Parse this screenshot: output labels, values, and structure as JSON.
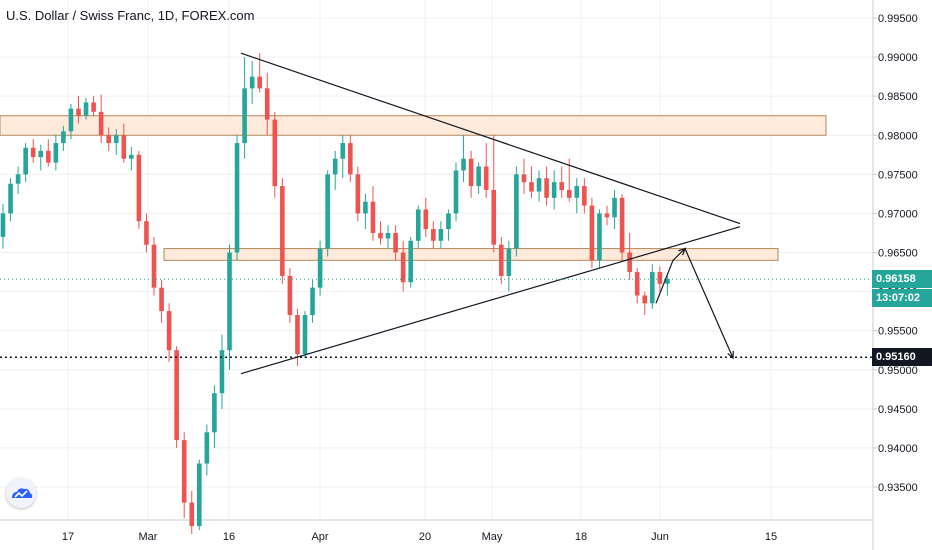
{
  "title": "U.S. Dollar / Swiss Franc, 1D, FOREX.com",
  "colors": {
    "up": "#26a69a",
    "down": "#ef5350",
    "zone_fill": "#fdeadb",
    "zone_stroke": "#b3885a",
    "grid": "#eef0f4",
    "axis_text": "#131722",
    "current": "#26a69a"
  },
  "logo_icon": "tradingview-cloud-icon",
  "price_axis": {
    "labels": [
      "0.99500",
      "0.99000",
      "0.98500",
      "0.98000",
      "0.97500",
      "0.97000",
      "0.96500",
      "0.96000",
      "0.95500",
      "0.95000",
      "0.94500",
      "0.94000",
      "0.93500"
    ],
    "current_price": "0.96158",
    "countdown": "13:07:02",
    "target_price": "0.95160"
  },
  "time_axis": {
    "labels": [
      "17",
      "Mar",
      "16",
      "Apr",
      "20",
      "May",
      "18",
      "Jun",
      "15"
    ]
  },
  "chart_data": {
    "type": "candlestick",
    "ylim": [
      0.9295,
      0.9975
    ],
    "xlabels": [
      "17",
      "Mar",
      "16",
      "Apr",
      "20",
      "May",
      "18",
      "Jun",
      "15"
    ],
    "candles": [
      [
        0.967,
        0.9712,
        0.9655,
        0.97
      ],
      [
        0.97,
        0.9745,
        0.969,
        0.9738
      ],
      [
        0.9738,
        0.976,
        0.9725,
        0.975
      ],
      [
        0.975,
        0.979,
        0.974,
        0.9784
      ],
      [
        0.9784,
        0.9795,
        0.9765,
        0.9772
      ],
      [
        0.9772,
        0.9788,
        0.9755,
        0.978
      ],
      [
        0.978,
        0.9795,
        0.976,
        0.9765
      ],
      [
        0.9765,
        0.98,
        0.9755,
        0.979
      ],
      [
        0.979,
        0.9812,
        0.978,
        0.9805
      ],
      [
        0.9805,
        0.984,
        0.9795,
        0.9834
      ],
      [
        0.9834,
        0.985,
        0.9815,
        0.9825
      ],
      [
        0.9825,
        0.9848,
        0.982,
        0.9842
      ],
      [
        0.9842,
        0.985,
        0.9825,
        0.983
      ],
      [
        0.983,
        0.9852,
        0.979,
        0.98
      ],
      [
        0.98,
        0.981,
        0.978,
        0.979
      ],
      [
        0.979,
        0.9808,
        0.9775,
        0.98
      ],
      [
        0.98,
        0.9815,
        0.9765,
        0.977
      ],
      [
        0.977,
        0.9785,
        0.9755,
        0.9775
      ],
      [
        0.9775,
        0.978,
        0.968,
        0.969
      ],
      [
        0.969,
        0.97,
        0.965,
        0.966
      ],
      [
        0.966,
        0.967,
        0.9595,
        0.9605
      ],
      [
        0.9605,
        0.9615,
        0.956,
        0.9575
      ],
      [
        0.9575,
        0.9585,
        0.951,
        0.9525
      ],
      [
        0.9525,
        0.953,
        0.94,
        0.941
      ],
      [
        0.941,
        0.942,
        0.931,
        0.933
      ],
      [
        0.933,
        0.9345,
        0.929,
        0.93
      ],
      [
        0.93,
        0.9385,
        0.9295,
        0.938
      ],
      [
        0.938,
        0.943,
        0.9365,
        0.942
      ],
      [
        0.942,
        0.948,
        0.94,
        0.947
      ],
      [
        0.947,
        0.9545,
        0.945,
        0.9525
      ],
      [
        0.9525,
        0.966,
        0.95,
        0.965
      ],
      [
        0.965,
        0.98,
        0.964,
        0.979
      ],
      [
        0.979,
        0.99,
        0.977,
        0.986
      ],
      [
        0.986,
        0.9895,
        0.984,
        0.9875
      ],
      [
        0.9875,
        0.9905,
        0.9855,
        0.986
      ],
      [
        0.986,
        0.988,
        0.98,
        0.982
      ],
      [
        0.982,
        0.983,
        0.972,
        0.9735
      ],
      [
        0.9735,
        0.9745,
        0.961,
        0.962
      ],
      [
        0.962,
        0.963,
        0.956,
        0.957
      ],
      [
        0.957,
        0.9578,
        0.9505,
        0.952
      ],
      [
        0.952,
        0.9575,
        0.9515,
        0.957
      ],
      [
        0.957,
        0.9615,
        0.956,
        0.9605
      ],
      [
        0.9605,
        0.9665,
        0.9595,
        0.9655
      ],
      [
        0.9655,
        0.9755,
        0.9645,
        0.975
      ],
      [
        0.975,
        0.978,
        0.973,
        0.977
      ],
      [
        0.977,
        0.98,
        0.9745,
        0.979
      ],
      [
        0.979,
        0.98,
        0.974,
        0.975
      ],
      [
        0.975,
        0.976,
        0.969,
        0.97
      ],
      [
        0.97,
        0.9725,
        0.968,
        0.9715
      ],
      [
        0.9715,
        0.9735,
        0.9665,
        0.9675
      ],
      [
        0.9675,
        0.969,
        0.966,
        0.9668
      ],
      [
        0.9668,
        0.9685,
        0.9655,
        0.9675
      ],
      [
        0.9675,
        0.9685,
        0.964,
        0.965
      ],
      [
        0.965,
        0.9665,
        0.96,
        0.9612
      ],
      [
        0.9612,
        0.967,
        0.9605,
        0.9665
      ],
      [
        0.9665,
        0.971,
        0.9655,
        0.9705
      ],
      [
        0.9705,
        0.972,
        0.967,
        0.968
      ],
      [
        0.968,
        0.969,
        0.9655,
        0.9665
      ],
      [
        0.9665,
        0.969,
        0.9655,
        0.968
      ],
      [
        0.968,
        0.9705,
        0.9665,
        0.97
      ],
      [
        0.97,
        0.9765,
        0.969,
        0.9755
      ],
      [
        0.9755,
        0.98,
        0.974,
        0.977
      ],
      [
        0.977,
        0.978,
        0.972,
        0.9735
      ],
      [
        0.9735,
        0.9765,
        0.9725,
        0.976
      ],
      [
        0.976,
        0.979,
        0.972,
        0.973
      ],
      [
        0.973,
        0.98,
        0.965,
        0.966
      ],
      [
        0.966,
        0.967,
        0.961,
        0.962
      ],
      [
        0.962,
        0.9665,
        0.96,
        0.9655
      ],
      [
        0.9655,
        0.976,
        0.9645,
        0.975
      ],
      [
        0.975,
        0.977,
        0.9725,
        0.974
      ],
      [
        0.974,
        0.976,
        0.972,
        0.9728
      ],
      [
        0.9728,
        0.9755,
        0.9715,
        0.9745
      ],
      [
        0.9745,
        0.976,
        0.971,
        0.972
      ],
      [
        0.972,
        0.9755,
        0.9705,
        0.974
      ],
      [
        0.974,
        0.976,
        0.972,
        0.973
      ],
      [
        0.973,
        0.977,
        0.9715,
        0.972
      ],
      [
        0.972,
        0.9745,
        0.97,
        0.9735
      ],
      [
        0.9735,
        0.9745,
        0.97,
        0.971
      ],
      [
        0.971,
        0.972,
        0.963,
        0.964
      ],
      [
        0.964,
        0.9705,
        0.963,
        0.97
      ],
      [
        0.97,
        0.971,
        0.9685,
        0.9695
      ],
      [
        0.9695,
        0.973,
        0.968,
        0.972
      ],
      [
        0.972,
        0.9725,
        0.964,
        0.965
      ],
      [
        0.965,
        0.9675,
        0.9615,
        0.9625
      ],
      [
        0.9625,
        0.963,
        0.9585,
        0.9595
      ],
      [
        0.9595,
        0.96,
        0.957,
        0.9585
      ],
      [
        0.9585,
        0.9635,
        0.9578,
        0.9625
      ],
      [
        0.9625,
        0.9632,
        0.96,
        0.961
      ],
      [
        0.961,
        0.962,
        0.9595,
        0.9616
      ]
    ],
    "trendlines": [
      {
        "name": "descending resistance",
        "points": [
          [
            241,
            0.9905
          ],
          [
            740,
            0.9687
          ]
        ]
      },
      {
        "name": "ascending support",
        "points": [
          [
            241,
            0.9495
          ],
          [
            740,
            0.9683
          ]
        ]
      }
    ],
    "zones": [
      {
        "name": "supply zone",
        "x1": 0,
        "x2": 826,
        "y1": 0.9825,
        "y2": 0.98
      },
      {
        "name": "demand zone",
        "x1": 164,
        "x2": 778,
        "y1": 0.9655,
        "y2": 0.964
      }
    ],
    "projection": [
      [
        656,
        0.9585
      ],
      [
        673,
        0.964
      ],
      [
        685,
        0.9655
      ],
      [
        733,
        0.9515
      ]
    ],
    "horizontal_levels": [
      {
        "name": "current",
        "value": 0.96158,
        "style": "dotted"
      },
      {
        "name": "target",
        "value": 0.9516,
        "style": "dotted"
      }
    ]
  }
}
